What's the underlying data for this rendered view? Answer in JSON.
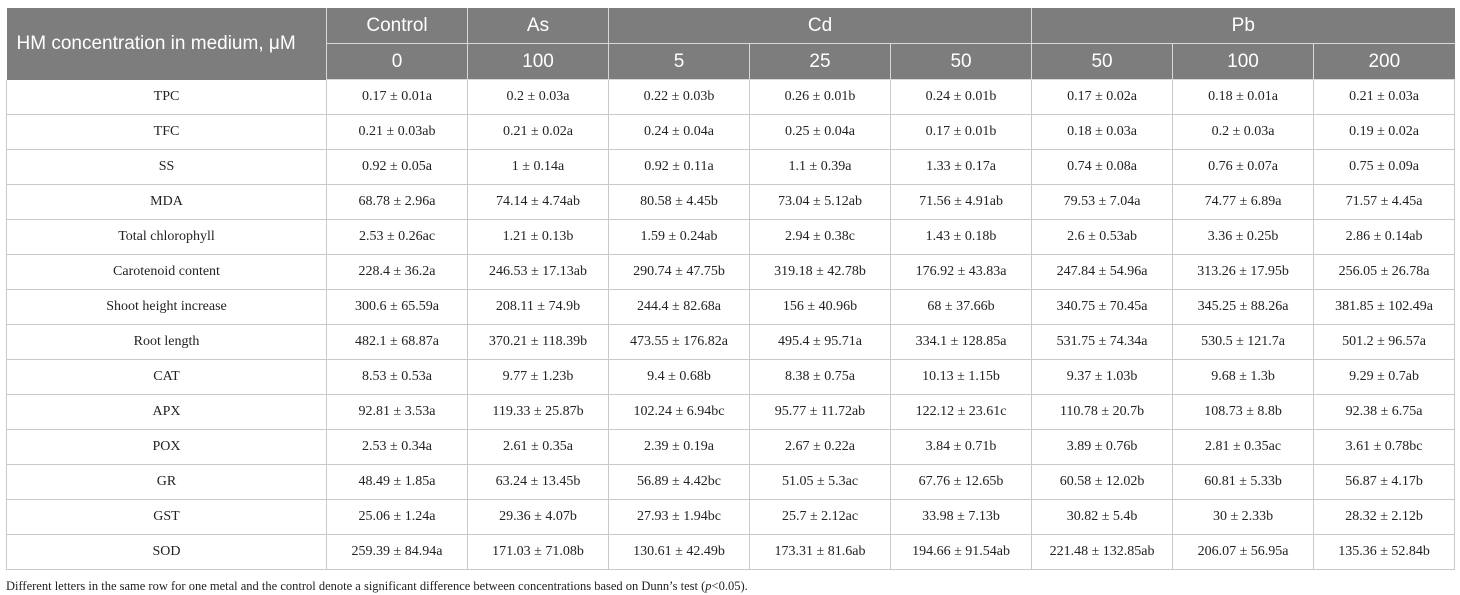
{
  "header": {
    "row_label": "HM concentration in medium, μM",
    "groups": [
      "Control",
      "As",
      "Cd",
      "Pb"
    ],
    "concentrations": [
      "0",
      "100",
      "5",
      "25",
      "50",
      "50",
      "100",
      "200"
    ]
  },
  "rows": [
    {
      "label": "TPC",
      "values": [
        "0.17 ± 0.01a",
        "0.2 ± 0.03a",
        "0.22 ± 0.03b",
        "0.26 ± 0.01b",
        "0.24 ± 0.01b",
        "0.17 ± 0.02a",
        "0.18 ± 0.01a",
        "0.21 ± 0.03a"
      ]
    },
    {
      "label": "TFC",
      "values": [
        "0.21 ± 0.03ab",
        "0.21 ± 0.02a",
        "0.24 ± 0.04a",
        "0.25 ± 0.04a",
        "0.17 ± 0.01b",
        "0.18 ± 0.03a",
        "0.2 ± 0.03a",
        "0.19 ± 0.02a"
      ]
    },
    {
      "label": "SS",
      "values": [
        "0.92 ± 0.05a",
        "1 ± 0.14a",
        "0.92 ± 0.11a",
        "1.1 ± 0.39a",
        "1.33 ± 0.17a",
        "0.74 ± 0.08a",
        "0.76 ± 0.07a",
        "0.75 ± 0.09a"
      ]
    },
    {
      "label": "MDA",
      "values": [
        "68.78 ± 2.96a",
        "74.14 ± 4.74ab",
        "80.58 ± 4.45b",
        "73.04 ± 5.12ab",
        "71.56 ± 4.91ab",
        "79.53 ± 7.04a",
        "74.77 ± 6.89a",
        "71.57 ± 4.45a"
      ]
    },
    {
      "label": "Total chlorophyll",
      "values": [
        "2.53 ± 0.26ac",
        "1.21 ± 0.13b",
        "1.59 ± 0.24ab",
        "2.94 ± 0.38c",
        "1.43 ± 0.18b",
        "2.6 ± 0.53ab",
        "3.36 ± 0.25b",
        "2.86 ± 0.14ab"
      ]
    },
    {
      "label": "Carotenoid content",
      "values": [
        "228.4 ± 36.2a",
        "246.53 ± 17.13ab",
        "290.74 ± 47.75b",
        "319.18 ± 42.78b",
        "176.92 ± 43.83a",
        "247.84 ± 54.96a",
        "313.26 ± 17.95b",
        "256.05 ± 26.78a"
      ]
    },
    {
      "label": "Shoot height increase",
      "values": [
        "300.6 ± 65.59a",
        "208.11 ± 74.9b",
        "244.4 ± 82.68a",
        "156 ± 40.96b",
        "68 ± 37.66b",
        "340.75 ± 70.45a",
        "345.25 ± 88.26a",
        "381.85 ± 102.49a"
      ]
    },
    {
      "label": "Root length",
      "values": [
        "482.1 ± 68.87a",
        "370.21 ± 118.39b",
        "473.55 ± 176.82a",
        "495.4 ± 95.71a",
        "334.1 ± 128.85a",
        "531.75 ± 74.34a",
        "530.5 ± 121.7a",
        "501.2 ± 96.57a"
      ]
    },
    {
      "label": "CAT",
      "values": [
        "8.53 ± 0.53a",
        "9.77 ± 1.23b",
        "9.4 ± 0.68b",
        "8.38 ± 0.75a",
        "10.13 ± 1.15b",
        "9.37 ± 1.03b",
        "9.68 ± 1.3b",
        "9.29 ± 0.7ab"
      ]
    },
    {
      "label": "APX",
      "values": [
        "92.81 ± 3.53a",
        "119.33 ± 25.87b",
        "102.24 ± 6.94bc",
        "95.77 ± 11.72ab",
        "122.12 ± 23.61c",
        "110.78 ± 20.7b",
        "108.73 ± 8.8b",
        "92.38 ± 6.75a"
      ]
    },
    {
      "label": "POX",
      "values": [
        "2.53 ± 0.34a",
        "2.61 ± 0.35a",
        "2.39 ± 0.19a",
        "2.67 ± 0.22a",
        "3.84 ± 0.71b",
        "3.89 ± 0.76b",
        "2.81 ± 0.35ac",
        "3.61 ± 0.78bc"
      ]
    },
    {
      "label": "GR",
      "values": [
        "48.49 ± 1.85a",
        "63.24 ± 13.45b",
        "56.89 ± 4.42bc",
        "51.05 ± 5.3ac",
        "67.76 ± 12.65b",
        "60.58 ± 12.02b",
        "60.81 ± 5.33b",
        "56.87 ± 4.17b"
      ]
    },
    {
      "label": "GST",
      "values": [
        "25.06 ± 1.24a",
        "29.36 ± 4.07b",
        "27.93 ± 1.94bc",
        "25.7 ± 2.12ac",
        "33.98 ± 7.13b",
        "30.82 ± 5.4b",
        "30 ± 2.33b",
        "28.32 ± 2.12b"
      ]
    },
    {
      "label": "SOD",
      "values": [
        "259.39 ± 84.94a",
        "171.03 ± 71.08b",
        "130.61 ± 42.49b",
        "173.31 ± 81.6ab",
        "194.66 ± 91.54ab",
        "221.48 ± 132.85ab",
        "206.07 ± 56.95a",
        "135.36 ± 52.84b"
      ]
    }
  ],
  "footnote": {
    "before": "Different letters in the same row for one metal and the control denote a significant difference between concentrations based on Dunn’s test (",
    "p": "p",
    "after": "<0.05)."
  }
}
